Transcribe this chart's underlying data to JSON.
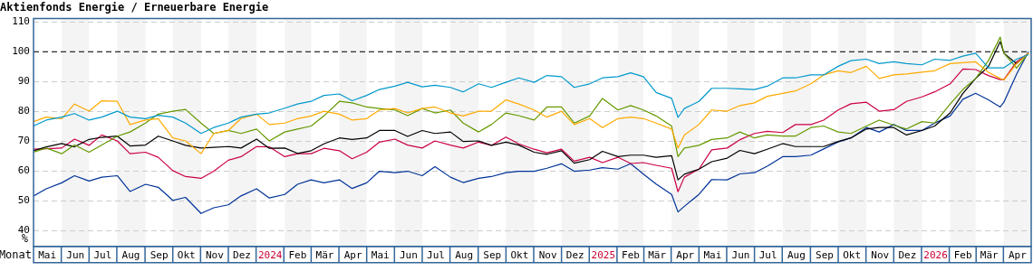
{
  "chart_data": {
    "type": "line",
    "title": "Aktienfonds Energie / Erneuerbare Energie",
    "xlabel": "Monat",
    "ylabel": "%",
    "x": [
      "2023-05-01",
      "2023-05-15",
      "2023-06-01",
      "2023-06-15",
      "2023-07-01",
      "2023-07-15",
      "2023-08-01",
      "2023-08-15",
      "2023-09-01",
      "2023-09-15",
      "2023-10-01",
      "2023-10-15",
      "2023-11-01",
      "2023-11-15",
      "2023-12-01",
      "2023-12-15",
      "2024-01-01",
      "2024-01-15",
      "2024-02-01",
      "2024-02-15",
      "2024-03-01",
      "2024-03-15",
      "2024-04-01",
      "2024-04-15",
      "2024-05-01",
      "2024-05-15",
      "2024-06-01",
      "2024-06-15",
      "2024-07-01",
      "2024-07-15",
      "2024-08-01",
      "2024-08-15",
      "2024-09-01",
      "2024-09-15",
      "2024-10-01",
      "2024-10-15",
      "2024-11-01",
      "2024-11-15",
      "2024-12-01",
      "2024-12-15",
      "2025-01-01",
      "2025-01-15",
      "2025-02-01",
      "2025-02-15",
      "2025-03-01",
      "2025-03-15",
      "2025-04-01",
      "2025-04-08",
      "2025-04-15",
      "2025-05-01",
      "2025-05-15",
      "2025-06-01",
      "2025-06-15",
      "2025-07-01",
      "2025-07-15",
      "2025-08-01",
      "2025-08-15",
      "2025-09-01",
      "2025-09-15",
      "2025-10-01",
      "2025-10-15",
      "2025-11-01",
      "2025-11-15",
      "2025-12-01",
      "2025-12-15",
      "2026-01-01",
      "2026-01-15",
      "2026-02-01",
      "2026-02-15",
      "2026-03-01",
      "2026-03-15",
      "2026-03-28",
      "2026-04-01",
      "2026-04-15",
      "2026-04-28"
    ],
    "series": [
      {
        "color": "#0099cc",
        "values": [
          75,
          77,
          78,
          79.2,
          77,
          78,
          80,
          78,
          77.5,
          78.6,
          78,
          76,
          72.5,
          74.5,
          76,
          78,
          79,
          79.4,
          81,
          82.4,
          83.3,
          85.3,
          85.8,
          83.5,
          85.3,
          87.3,
          88.4,
          89.7,
          88.2,
          88.7,
          88,
          86.5,
          89.2,
          88,
          89.7,
          91.2,
          89.7,
          92,
          91.6,
          88,
          89.2,
          91.2,
          91.6,
          92.9,
          91.6,
          86.3,
          84.3,
          77.9,
          80.9,
          83.3,
          87.7,
          87.7,
          87.5,
          87.3,
          88.4,
          91.2,
          91.2,
          92.2,
          92.2,
          95.1,
          97,
          97.5,
          96,
          96.6,
          96,
          95.6,
          97.5,
          97.1,
          98.5,
          99.5,
          94.6,
          94.6,
          94.6,
          97.5,
          99
        ]
      },
      {
        "color": "#ffaa00",
        "values": [
          76.5,
          78,
          77.5,
          82.4,
          80,
          83.5,
          83.3,
          75.5,
          77,
          77.5,
          71,
          70,
          65.7,
          72.5,
          73.5,
          77.5,
          79,
          75.5,
          76,
          77.5,
          78.4,
          80,
          79,
          77,
          77.5,
          80.4,
          80.9,
          79.4,
          80.9,
          81.4,
          79.4,
          78.4,
          80,
          80,
          83.8,
          82.4,
          80.4,
          78,
          80,
          75.5,
          77.5,
          74.5,
          77.5,
          78,
          77.5,
          76,
          74,
          67.6,
          72,
          75.5,
          80.4,
          80,
          81.9,
          82.8,
          85,
          86,
          86.8,
          89.2,
          92.2,
          93.6,
          93,
          95.1,
          91,
          92.2,
          92.5,
          93.1,
          93.6,
          96,
          96.3,
          96.6,
          93.1,
          91,
          90.5,
          96,
          99.5
        ]
      },
      {
        "color": "#669900",
        "values": [
          66.2,
          67.6,
          65.7,
          68.6,
          66.2,
          68.6,
          71.6,
          73,
          76,
          79,
          80,
          80.6,
          76,
          72.5,
          73.5,
          72.5,
          74,
          70,
          73,
          74,
          75,
          78.4,
          83.3,
          82.8,
          81.4,
          80.9,
          80.4,
          78.5,
          80.9,
          79.4,
          80.4,
          76,
          73,
          75.5,
          79.4,
          78.5,
          77,
          81.4,
          81.4,
          76,
          78.4,
          84.3,
          80.4,
          81.9,
          80.4,
          78.4,
          75,
          64.7,
          67.6,
          68.5,
          70.5,
          71,
          73,
          71,
          72,
          71.6,
          71.6,
          74.5,
          75,
          73,
          72.5,
          75,
          77,
          75.3,
          74,
          76.5,
          76,
          82.4,
          87.3,
          91,
          97,
          104.9,
          99.5,
          94.5,
          99.5
        ]
      },
      {
        "color": "#000000",
        "values": [
          66.7,
          68,
          69.1,
          68,
          70.5,
          71.2,
          71.6,
          68.3,
          68.6,
          71.6,
          70,
          68.5,
          67.6,
          67.8,
          68.1,
          67.6,
          70.6,
          67.5,
          67.6,
          65.8,
          66.7,
          69,
          71,
          70.5,
          71,
          73.5,
          73.5,
          71.5,
          73.5,
          72.5,
          73,
          69.8,
          70,
          68.5,
          69.6,
          68.6,
          66.2,
          65.5,
          66.7,
          62.5,
          63.7,
          66.5,
          64.7,
          65.2,
          65.2,
          64.5,
          65,
          56.9,
          58.8,
          60.5,
          63,
          64.2,
          66.8,
          65.7,
          67.2,
          69.1,
          68.1,
          68.1,
          68.1,
          69.8,
          71,
          74,
          74.5,
          74.5,
          72,
          73.5,
          75,
          79.4,
          86,
          91,
          95,
          103.4,
          99.5,
          96,
          99.5
        ]
      },
      {
        "color": "#cc0044",
        "values": [
          67.2,
          67.4,
          67.6,
          70.6,
          68.5,
          72,
          70,
          65.7,
          66.2,
          64.5,
          60,
          58,
          57.4,
          59.8,
          63.5,
          64.7,
          68.1,
          68,
          64.7,
          65.7,
          65.7,
          67.5,
          66.7,
          64,
          66.2,
          69.6,
          70.6,
          68.6,
          67.6,
          70,
          68.6,
          67.6,
          69.6,
          68.5,
          71.3,
          69,
          67.2,
          66,
          67.2,
          63.2,
          64.5,
          62.7,
          64.5,
          62.4,
          62.7,
          61.8,
          60.8,
          52.9,
          57.8,
          60.5,
          67,
          67.6,
          70.4,
          72.5,
          73.2,
          72.8,
          75.5,
          75.5,
          77,
          80.4,
          82.5,
          83,
          80,
          80.5,
          83.3,
          84.8,
          86.5,
          89.2,
          94.2,
          94,
          92,
          90.6,
          90.6,
          96.6,
          99.5
        ]
      },
      {
        "color": "#003399",
        "values": [
          51.5,
          53.9,
          55.9,
          58.3,
          56.5,
          57.8,
          58.3,
          53,
          55.4,
          54.4,
          50,
          51,
          45.6,
          47.5,
          48.5,
          51.5,
          53.9,
          50.8,
          52,
          55.4,
          56.9,
          55.9,
          56.9,
          54,
          55.9,
          59.8,
          59.3,
          59.8,
          58.3,
          61.3,
          57.8,
          56,
          57.4,
          58,
          59.3,
          59.8,
          59.8,
          60.8,
          62.3,
          59.8,
          60.2,
          61,
          60.5,
          62.3,
          58.8,
          55.5,
          52,
          46.1,
          48,
          52,
          57,
          56.9,
          58.9,
          59.3,
          61.5,
          64.7,
          64.7,
          65.2,
          67.3,
          69.6,
          71,
          74.5,
          73,
          75.5,
          73.5,
          73.5,
          76,
          78.4,
          84,
          86,
          83.8,
          81.4,
          83,
          92.5,
          100
        ]
      }
    ],
    "xlim": [
      "2023-05-01",
      "2026-05-01"
    ],
    "xticks": [
      {
        "value": "2023-05-16",
        "label": "Mai"
      },
      {
        "value": "2023-06-16",
        "label": "Jun"
      },
      {
        "value": "2023-07-16",
        "label": "Jul"
      },
      {
        "value": "2023-08-16",
        "label": "Aug"
      },
      {
        "value": "2023-09-16",
        "label": "Sep"
      },
      {
        "value": "2023-10-16",
        "label": "Okt"
      },
      {
        "value": "2023-11-16",
        "label": "Nov"
      },
      {
        "value": "2023-12-16",
        "label": "Dez"
      },
      {
        "value": "2024-01-16",
        "label": "2024"
      },
      {
        "value": "2024-02-15",
        "label": "Feb"
      },
      {
        "value": "2024-03-16",
        "label": "Mär"
      },
      {
        "value": "2024-04-16",
        "label": "Apr"
      },
      {
        "value": "2024-05-16",
        "label": "Mai"
      },
      {
        "value": "2024-06-16",
        "label": "Jun"
      },
      {
        "value": "2024-07-16",
        "label": "Jul"
      },
      {
        "value": "2024-08-16",
        "label": "Aug"
      },
      {
        "value": "2024-09-16",
        "label": "Sep"
      },
      {
        "value": "2024-10-16",
        "label": "Okt"
      },
      {
        "value": "2024-11-16",
        "label": "Nov"
      },
      {
        "value": "2024-12-16",
        "label": "Dez"
      },
      {
        "value": "2025-01-16",
        "label": "2025"
      },
      {
        "value": "2025-02-15",
        "label": "Feb"
      },
      {
        "value": "2025-03-16",
        "label": "Mär"
      },
      {
        "value": "2025-04-16",
        "label": "Apr"
      },
      {
        "value": "2025-05-16",
        "label": "Mai"
      },
      {
        "value": "2025-06-16",
        "label": "Jun"
      },
      {
        "value": "2025-07-16",
        "label": "Jul"
      },
      {
        "value": "2025-08-16",
        "label": "Aug"
      },
      {
        "value": "2025-09-16",
        "label": "Sep"
      },
      {
        "value": "2025-10-16",
        "label": "Okt"
      },
      {
        "value": "2025-11-16",
        "label": "Nov"
      },
      {
        "value": "2025-12-16",
        "label": "Dez"
      },
      {
        "value": "2026-01-16",
        "label": "2026"
      },
      {
        "value": "2026-02-15",
        "label": "Feb"
      },
      {
        "value": "2026-03-16",
        "label": "Mär"
      },
      {
        "value": "2026-04-16",
        "label": "Apr"
      }
    ],
    "ylim": [
      34.5,
      111.2
    ],
    "yticks": [
      40,
      50,
      60,
      70,
      80,
      90,
      100,
      110
    ],
    "grid": "y",
    "ref_lines": [
      {
        "axis": "y",
        "value": 100,
        "color": "#000000",
        "line_style": "dashed"
      }
    ],
    "bands": [
      {
        "axis": "x",
        "from": "2023-06-01",
        "to": "2023-07-01",
        "color": "#f4f4f4"
      },
      {
        "axis": "x",
        "from": "2023-08-01",
        "to": "2023-09-01",
        "color": "#f4f4f4"
      },
      {
        "axis": "x",
        "from": "2023-10-01",
        "to": "2023-11-01",
        "color": "#f4f4f4"
      },
      {
        "axis": "x",
        "from": "2023-12-01",
        "to": "2024-01-01",
        "color": "#f4f4f4"
      },
      {
        "axis": "x",
        "from": "2024-02-01",
        "to": "2024-03-01",
        "color": "#f4f4f4"
      },
      {
        "axis": "x",
        "from": "2024-04-01",
        "to": "2024-05-01",
        "color": "#f4f4f4"
      },
      {
        "axis": "x",
        "from": "2024-06-01",
        "to": "2024-07-01",
        "color": "#f4f4f4"
      },
      {
        "axis": "x",
        "from": "2024-08-01",
        "to": "2024-09-01",
        "color": "#f4f4f4"
      },
      {
        "axis": "x",
        "from": "2024-10-01",
        "to": "2024-11-01",
        "color": "#f4f4f4"
      },
      {
        "axis": "x",
        "from": "2024-12-01",
        "to": "2025-01-01",
        "color": "#f4f4f4"
      },
      {
        "axis": "x",
        "from": "2025-02-01",
        "to": "2025-03-01",
        "color": "#f4f4f4"
      },
      {
        "axis": "x",
        "from": "2025-04-01",
        "to": "2025-05-01",
        "color": "#f4f4f4"
      },
      {
        "axis": "x",
        "from": "2025-06-01",
        "to": "2025-07-01",
        "color": "#f4f4f4"
      },
      {
        "axis": "x",
        "from": "2025-08-01",
        "to": "2025-09-01",
        "color": "#f4f4f4"
      },
      {
        "axis": "x",
        "from": "2025-10-01",
        "to": "2025-11-01",
        "color": "#f4f4f4"
      },
      {
        "axis": "x",
        "from": "2025-12-01",
        "to": "2026-01-01",
        "color": "#f4f4f4"
      },
      {
        "axis": "x",
        "from": "2026-02-01",
        "to": "2026-03-01",
        "color": "#f4f4f4"
      },
      {
        "axis": "x",
        "from": "2026-04-01",
        "to": "2026-05-01",
        "color": "#f4f4f4"
      }
    ]
  }
}
